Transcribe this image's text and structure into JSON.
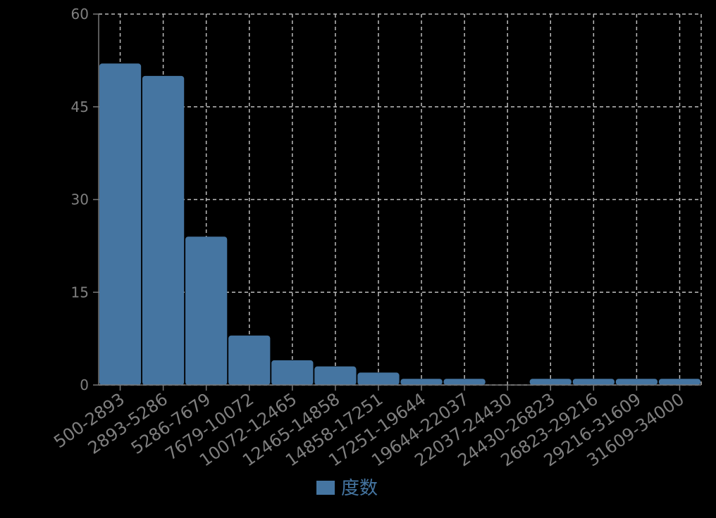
{
  "chart_data": {
    "type": "bar",
    "categories": [
      "500-2893",
      "2893-5286",
      "5286-7679",
      "7679-10072",
      "10072-12465",
      "12465-14858",
      "14858-17251",
      "17251-19644",
      "19644-22037",
      "22037-24430",
      "24430-26823",
      "26823-29216",
      "29216-31609",
      "31609-34000"
    ],
    "series": [
      {
        "name": "度数",
        "color": "#4575a1",
        "values": [
          52,
          50,
          24,
          8,
          4,
          3,
          2,
          1,
          1,
          0,
          1,
          1,
          1,
          1
        ]
      }
    ],
    "ylim": [
      0,
      60
    ],
    "yticks": [
      0,
      15,
      30,
      45,
      60
    ],
    "grid": true,
    "legend": "bottom"
  }
}
